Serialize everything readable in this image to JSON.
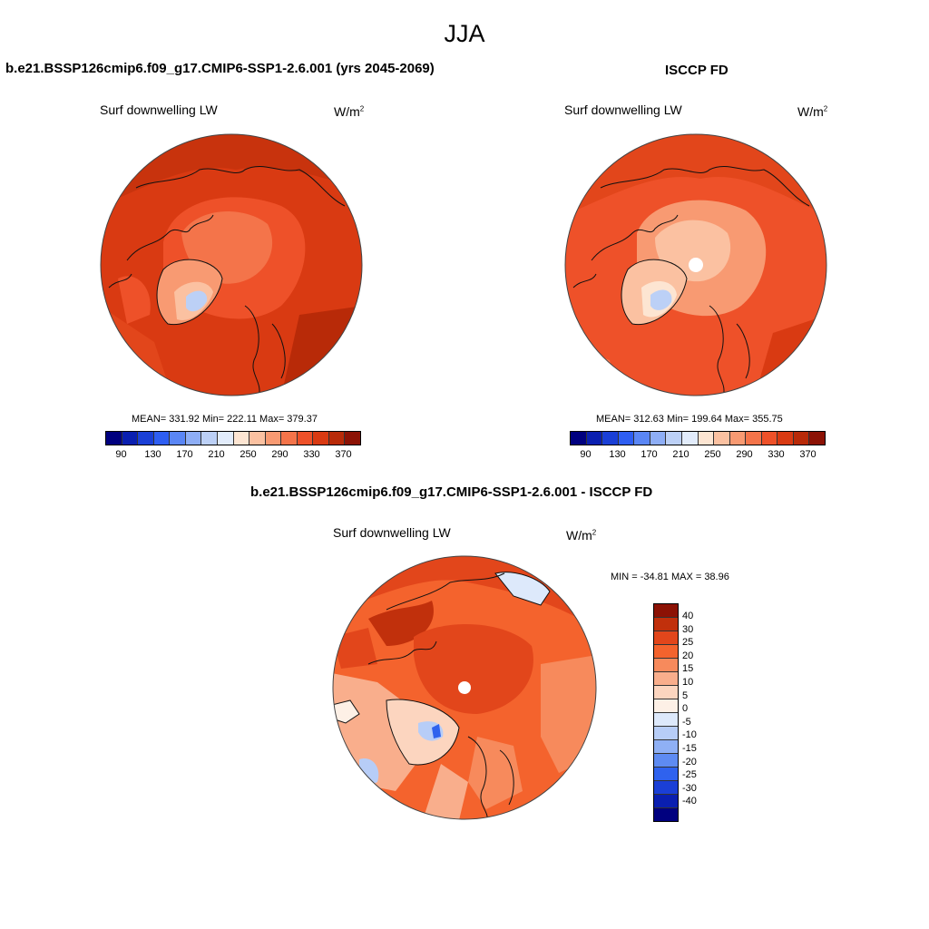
{
  "figure": {
    "season_title": "JJA"
  },
  "panels": {
    "model": {
      "title": "b.e21.BSSP126cmip6.f09_g17.CMIP6-SSP1-2.6.001 (yrs 2045-2069)",
      "variable": "Surf downwelling LW",
      "units_base": "W/m",
      "units_exp": "2",
      "stats": "MEAN= 331.92  Min= 222.11  Max= 379.37"
    },
    "obs": {
      "title": "ISCCP FD",
      "variable": "Surf downwelling LW",
      "units_base": "W/m",
      "units_exp": "2",
      "stats": "MEAN= 312.63  Min= 199.64  Max= 355.75"
    },
    "diff": {
      "title": "b.e21.BSSP126cmip6.f09_g17.CMIP6-SSP1-2.6.001 - ISCCP FD",
      "variable": "Surf downwelling LW",
      "units_base": "W/m",
      "units_exp": "2",
      "stats": "MIN = -34.81 MAX =  38.96"
    }
  },
  "abs_colorbar": {
    "colors": [
      "#00007f",
      "#0a1fb0",
      "#1a3fd6",
      "#2e5ef2",
      "#5a86f5",
      "#8eaef6",
      "#bcd0f6",
      "#e2ecfb",
      "#fde5d2",
      "#fbc1a1",
      "#f89a72",
      "#f4744a",
      "#ee5129",
      "#d93a12",
      "#b82a08",
      "#8c1205"
    ],
    "tick_labels": [
      "90",
      "130",
      "170",
      "210",
      "250",
      "290",
      "330",
      "370"
    ]
  },
  "diff_colorbar": {
    "colors": [
      "#8c1205",
      "#c1300c",
      "#e2461b",
      "#f4632d",
      "#f78a5c",
      "#f9ae8c",
      "#fcd5bf",
      "#fdf0e6",
      "#dde9fb",
      "#b7cdf7",
      "#8fb0f5",
      "#5e8bf2",
      "#2f62ee",
      "#1a3fd6",
      "#0a1fb0",
      "#00007f"
    ],
    "tick_labels": [
      "40",
      "30",
      "25",
      "20",
      "15",
      "10",
      "5",
      "0",
      "-5",
      "-10",
      "-15",
      "-20",
      "-25",
      "-30",
      "-40"
    ]
  }
}
